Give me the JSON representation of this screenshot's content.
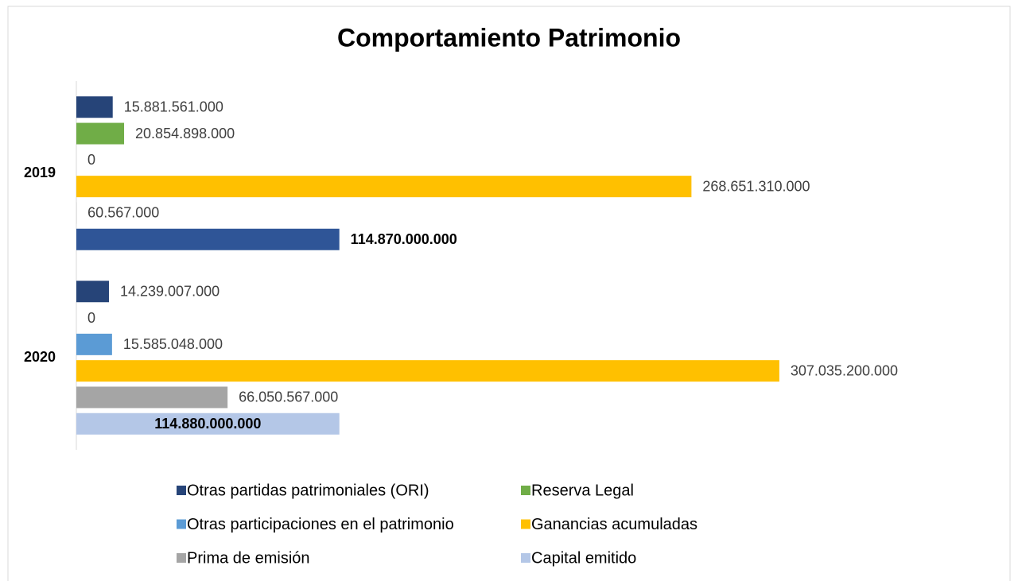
{
  "chart_data": {
    "type": "hbar",
    "title": "Comportamiento Patrimonio",
    "categories": [
      "2019",
      "2020"
    ],
    "xlim": [
      0,
      330000000000
    ],
    "series": [
      {
        "name": "Otras partidas patrimoniales (ORI)",
        "color": "#264478",
        "values": [
          15881561000,
          14239007000
        ],
        "value_labels": [
          "15.881.561.000",
          "14.239.007.000"
        ]
      },
      {
        "name": "Reserva Legal",
        "color": "#70ad47",
        "values": [
          20854898000,
          0
        ],
        "value_labels": [
          "20.854.898.000",
          "0"
        ]
      },
      {
        "name": "Otras participaciones en el patrimonio",
        "color": "#5b9bd5",
        "values": [
          0,
          15585048000
        ],
        "value_labels": [
          "0",
          "15.585.048.000"
        ]
      },
      {
        "name": "Ganancias acumuladas",
        "color": "#ffc000",
        "values": [
          268651310000,
          307035200000
        ],
        "value_labels": [
          "268.651.310.000",
          "307.035.200.000"
        ]
      },
      {
        "name": "Prima de emisión",
        "color": "#a5a5a5",
        "values": [
          60567000,
          66050567000
        ],
        "value_labels": [
          "60.567.000",
          "66.050.567.000"
        ]
      },
      {
        "name": "Capital emitido",
        "color": "#b4c7e7",
        "colors": [
          "#2f5597",
          "#b4c7e7"
        ],
        "bold_labels": true,
        "label_inside": [
          false,
          true
        ],
        "values": [
          114870000000,
          114880000000
        ],
        "value_labels": [
          "114.870.000.000",
          "114.880.000.000"
        ]
      }
    ]
  }
}
